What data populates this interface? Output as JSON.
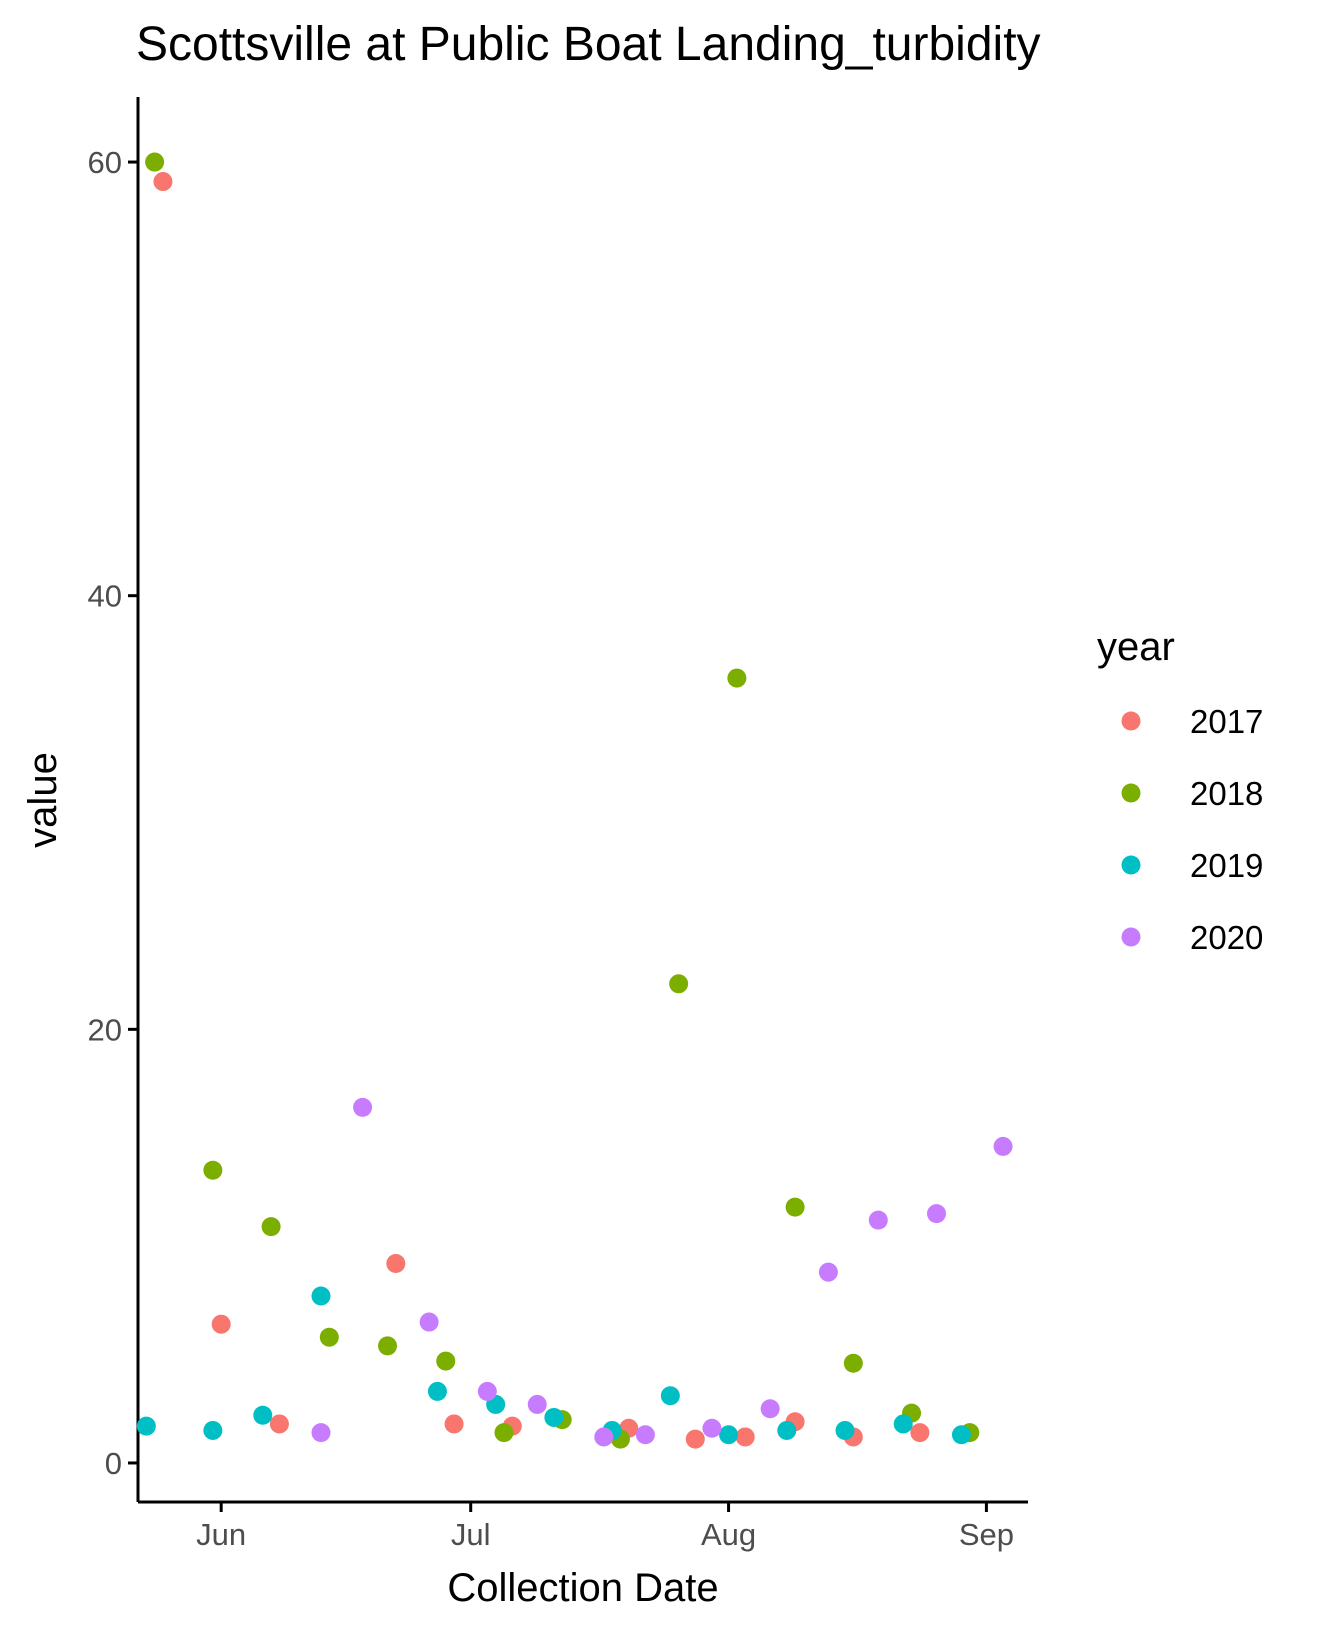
{
  "chart_data": {
    "type": "scatter",
    "title": "Scottsville at Public Boat Landing_turbidity",
    "xlabel": "Collection Date",
    "ylabel": "value",
    "x_axis": {
      "scale": "date",
      "range": [
        "2000-05-22",
        "2000-09-06"
      ],
      "ticks": [
        {
          "value": "2000-06-01",
          "label": "Jun"
        },
        {
          "value": "2000-07-01",
          "label": "Jul"
        },
        {
          "value": "2000-08-01",
          "label": "Aug"
        },
        {
          "value": "2000-09-01",
          "label": "Sep"
        }
      ]
    },
    "y_axis": {
      "range": [
        -1.8,
        63
      ],
      "ticks": [
        0,
        20,
        40,
        60
      ]
    },
    "grid": false,
    "legend": {
      "title": "year",
      "position": "right"
    },
    "series": [
      {
        "name": "2017",
        "color": "#F8766D",
        "points": [
          {
            "x": "2000-05-25",
            "y": 59.1
          },
          {
            "x": "2000-06-01",
            "y": 6.4
          },
          {
            "x": "2000-06-08",
            "y": 1.8
          },
          {
            "x": "2000-06-22",
            "y": 9.2
          },
          {
            "x": "2000-06-29",
            "y": 1.8
          },
          {
            "x": "2000-07-06",
            "y": 1.7
          },
          {
            "x": "2000-07-20",
            "y": 1.6
          },
          {
            "x": "2000-07-28",
            "y": 1.1
          },
          {
            "x": "2000-08-03",
            "y": 1.2
          },
          {
            "x": "2000-08-09",
            "y": 1.9
          },
          {
            "x": "2000-08-16",
            "y": 1.2
          },
          {
            "x": "2000-08-24",
            "y": 1.4
          }
        ]
      },
      {
        "name": "2018",
        "color": "#7CAE00",
        "points": [
          {
            "x": "2000-05-24",
            "y": 60.0
          },
          {
            "x": "2000-05-31",
            "y": 13.5
          },
          {
            "x": "2000-06-07",
            "y": 10.9
          },
          {
            "x": "2000-06-14",
            "y": 5.8
          },
          {
            "x": "2000-06-21",
            "y": 5.4
          },
          {
            "x": "2000-06-28",
            "y": 4.7
          },
          {
            "x": "2000-07-05",
            "y": 1.4
          },
          {
            "x": "2000-07-12",
            "y": 2.0
          },
          {
            "x": "2000-07-19",
            "y": 1.1
          },
          {
            "x": "2000-07-26",
            "y": 22.1
          },
          {
            "x": "2000-08-02",
            "y": 36.2
          },
          {
            "x": "2000-08-09",
            "y": 11.8
          },
          {
            "x": "2000-08-16",
            "y": 4.6
          },
          {
            "x": "2000-08-23",
            "y": 2.3
          },
          {
            "x": "2000-08-30",
            "y": 1.4
          }
        ]
      },
      {
        "name": "2019",
        "color": "#00BFC4",
        "points": [
          {
            "x": "2000-05-23",
            "y": 1.7
          },
          {
            "x": "2000-05-31",
            "y": 1.5
          },
          {
            "x": "2000-06-06",
            "y": 2.2
          },
          {
            "x": "2000-06-13",
            "y": 7.7
          },
          {
            "x": "2000-06-27",
            "y": 3.3
          },
          {
            "x": "2000-07-04",
            "y": 2.7
          },
          {
            "x": "2000-07-11",
            "y": 2.1
          },
          {
            "x": "2000-07-18",
            "y": 1.5
          },
          {
            "x": "2000-07-25",
            "y": 3.1
          },
          {
            "x": "2000-08-01",
            "y": 1.3
          },
          {
            "x": "2000-08-08",
            "y": 1.5
          },
          {
            "x": "2000-08-15",
            "y": 1.5
          },
          {
            "x": "2000-08-22",
            "y": 1.8
          },
          {
            "x": "2000-08-29",
            "y": 1.3
          }
        ]
      },
      {
        "name": "2020",
        "color": "#C77CFF",
        "points": [
          {
            "x": "2000-06-13",
            "y": 1.4
          },
          {
            "x": "2000-06-18",
            "y": 16.4
          },
          {
            "x": "2000-06-26",
            "y": 6.5
          },
          {
            "x": "2000-07-03",
            "y": 3.3
          },
          {
            "x": "2000-07-09",
            "y": 2.7
          },
          {
            "x": "2000-07-17",
            "y": 1.2
          },
          {
            "x": "2000-07-22",
            "y": 1.3
          },
          {
            "x": "2000-07-30",
            "y": 1.6
          },
          {
            "x": "2000-08-06",
            "y": 2.5
          },
          {
            "x": "2000-08-13",
            "y": 8.8
          },
          {
            "x": "2000-08-19",
            "y": 11.2
          },
          {
            "x": "2000-08-26",
            "y": 11.5
          },
          {
            "x": "2000-09-03",
            "y": 14.6
          }
        ]
      }
    ]
  }
}
